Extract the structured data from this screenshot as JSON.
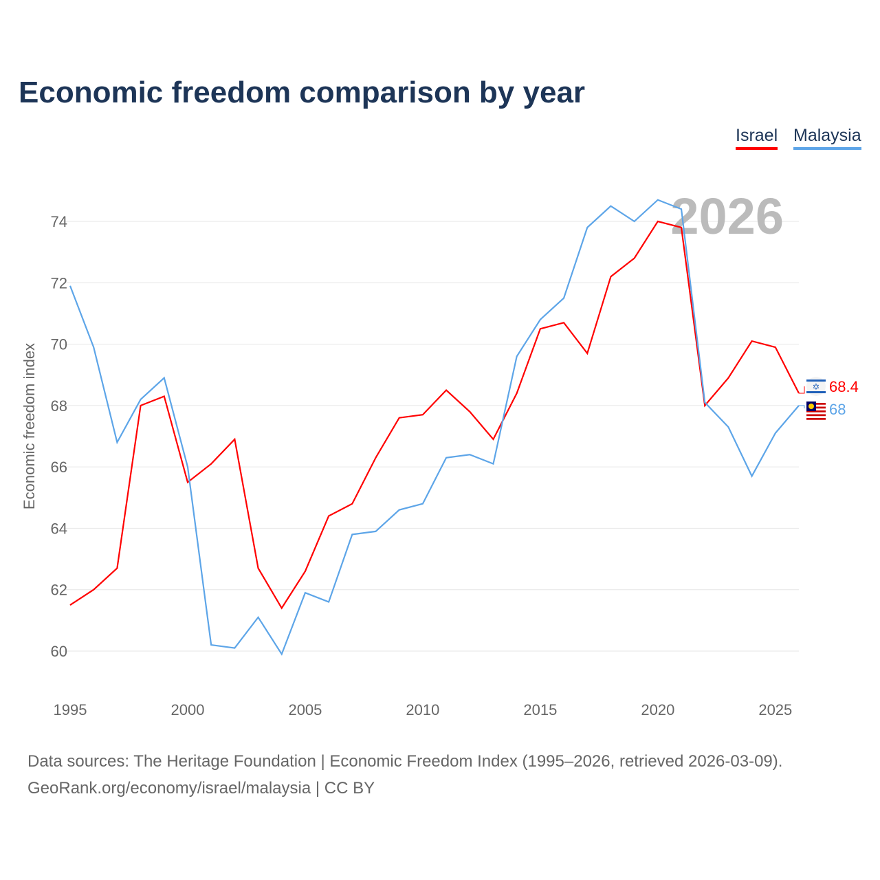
{
  "chart_data": {
    "type": "line",
    "title": "Economic freedom comparison by year",
    "ylabel": "Economic freedom index",
    "xlabel": "",
    "ylim": [
      59,
      75.5
    ],
    "xlim": [
      1995,
      2026
    ],
    "yticks": [
      60,
      62,
      64,
      66,
      68,
      70,
      72,
      74
    ],
    "xticks": [
      1995,
      2000,
      2005,
      2010,
      2015,
      2020,
      2025
    ],
    "grid": true,
    "legend_position": "top-right",
    "year_label": "2026",
    "x": [
      1995,
      1996,
      1997,
      1998,
      1999,
      2000,
      2001,
      2002,
      2003,
      2004,
      2005,
      2006,
      2007,
      2008,
      2009,
      2010,
      2011,
      2012,
      2013,
      2014,
      2015,
      2016,
      2017,
      2018,
      2019,
      2020,
      2021,
      2022,
      2023,
      2024,
      2025,
      2026
    ],
    "series": [
      {
        "name": "Israel",
        "color": "#ff0000",
        "end_label": "68.4",
        "values": [
          61.5,
          62.0,
          62.7,
          68.0,
          68.3,
          65.5,
          66.1,
          66.9,
          62.7,
          61.4,
          62.6,
          64.4,
          64.8,
          66.3,
          67.6,
          67.7,
          68.5,
          67.8,
          66.9,
          68.4,
          70.5,
          70.7,
          69.7,
          72.2,
          72.8,
          74.0,
          73.8,
          68.0,
          68.9,
          70.1,
          69.9,
          68.4
        ]
      },
      {
        "name": "Malaysia",
        "color": "#5da5e8",
        "end_label": "68",
        "values": [
          71.9,
          69.9,
          66.8,
          68.2,
          68.9,
          66.0,
          60.2,
          60.1,
          61.1,
          59.9,
          61.9,
          61.6,
          63.8,
          63.9,
          64.6,
          64.8,
          66.3,
          66.4,
          66.1,
          69.6,
          70.8,
          71.5,
          73.8,
          74.5,
          74.0,
          74.7,
          74.4,
          68.1,
          67.3,
          65.7,
          67.1,
          68.0
        ]
      }
    ]
  },
  "footer": {
    "line1": "Data sources: The Heritage Foundation | Economic Freedom Index (1995–2026, retrieved 2026-03-09).",
    "line2": "GeoRank.org/economy/israel/malaysia | CC BY"
  }
}
